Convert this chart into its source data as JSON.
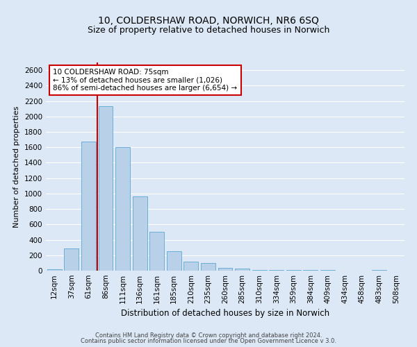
{
  "title": "10, COLDERSHAW ROAD, NORWICH, NR6 6SQ",
  "subtitle": "Size of property relative to detached houses in Norwich",
  "xlabel": "Distribution of detached houses by size in Norwich",
  "ylabel": "Number of detached properties",
  "bin_labels": [
    "12sqm",
    "37sqm",
    "61sqm",
    "86sqm",
    "111sqm",
    "136sqm",
    "161sqm",
    "185sqm",
    "210sqm",
    "235sqm",
    "260sqm",
    "285sqm",
    "310sqm",
    "334sqm",
    "359sqm",
    "384sqm",
    "409sqm",
    "434sqm",
    "458sqm",
    "483sqm",
    "508sqm"
  ],
  "bin_values": [
    20,
    290,
    1670,
    2130,
    1600,
    960,
    505,
    250,
    120,
    95,
    35,
    30,
    5,
    5,
    5,
    5,
    5,
    0,
    0,
    5,
    0
  ],
  "bar_color": "#b8d0e8",
  "bar_edge_color": "#6baed6",
  "vline_color": "#cc0000",
  "vline_pos": 2.5,
  "annotation_text": "10 COLDERSHAW ROAD: 75sqm\n← 13% of detached houses are smaller (1,026)\n86% of semi-detached houses are larger (6,654) →",
  "annotation_box_facecolor": "#ffffff",
  "annotation_box_edgecolor": "#cc0000",
  "ylim": [
    0,
    2700
  ],
  "yticks": [
    0,
    200,
    400,
    600,
    800,
    1000,
    1200,
    1400,
    1600,
    1800,
    2000,
    2200,
    2400,
    2600
  ],
  "fig_facecolor": "#dce8f5",
  "axes_facecolor": "#dce8f5",
  "grid_color": "#ffffff",
  "title_fontsize": 10,
  "subtitle_fontsize": 9,
  "ylabel_fontsize": 8,
  "xlabel_fontsize": 8.5,
  "tick_fontsize": 7.5,
  "annot_fontsize": 7.5,
  "footer_line1": "Contains HM Land Registry data © Crown copyright and database right 2024.",
  "footer_line2": "Contains public sector information licensed under the Open Government Licence v 3.0.",
  "footer_fontsize": 6.0
}
